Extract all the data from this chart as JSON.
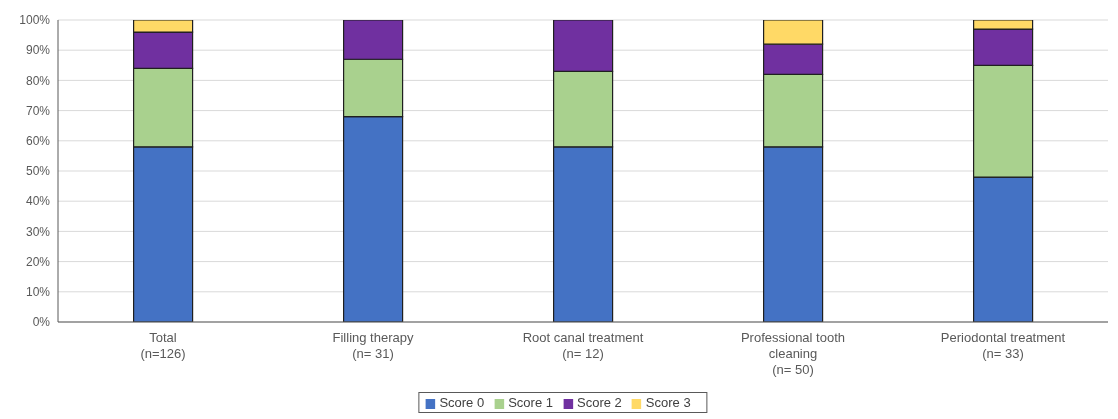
{
  "chart_data": {
    "type": "bar",
    "stacked": true,
    "categories": [
      "Total\n(n=126)",
      "Filling therapy\n(n= 31)",
      "Root canal treatment\n(n= 12)",
      "Professional tooth\ncleaning\n(n= 50)",
      "Periodontal treatment\n(n= 33)"
    ],
    "series": [
      {
        "name": "Score 0",
        "color": "#4472c4",
        "values": [
          58,
          68,
          58,
          58,
          48
        ]
      },
      {
        "name": "Score 1",
        "color": "#a9d18e",
        "values": [
          26,
          19,
          25,
          24,
          37
        ]
      },
      {
        "name": "Score 2",
        "color": "#7030a0",
        "values": [
          12,
          13,
          17,
          10,
          12
        ]
      },
      {
        "name": "Score 3",
        "color": "#ffd966",
        "values": [
          4,
          0,
          0,
          8,
          3
        ]
      }
    ],
    "ylim": [
      0,
      100
    ],
    "yticks": [
      {
        "value": 0,
        "label": "0%"
      },
      {
        "value": 10,
        "label": "10%"
      },
      {
        "value": 20,
        "label": "20%"
      },
      {
        "value": 30,
        "label": "30%"
      },
      {
        "value": 40,
        "label": "40%"
      },
      {
        "value": 50,
        "label": "50%"
      },
      {
        "value": 60,
        "label": "60%"
      },
      {
        "value": 70,
        "label": "70%"
      },
      {
        "value": 80,
        "label": "80%"
      },
      {
        "value": 90,
        "label": "90%"
      },
      {
        "value": 100,
        "label": "100%"
      }
    ],
    "grid": "y",
    "legend": "bottom"
  }
}
